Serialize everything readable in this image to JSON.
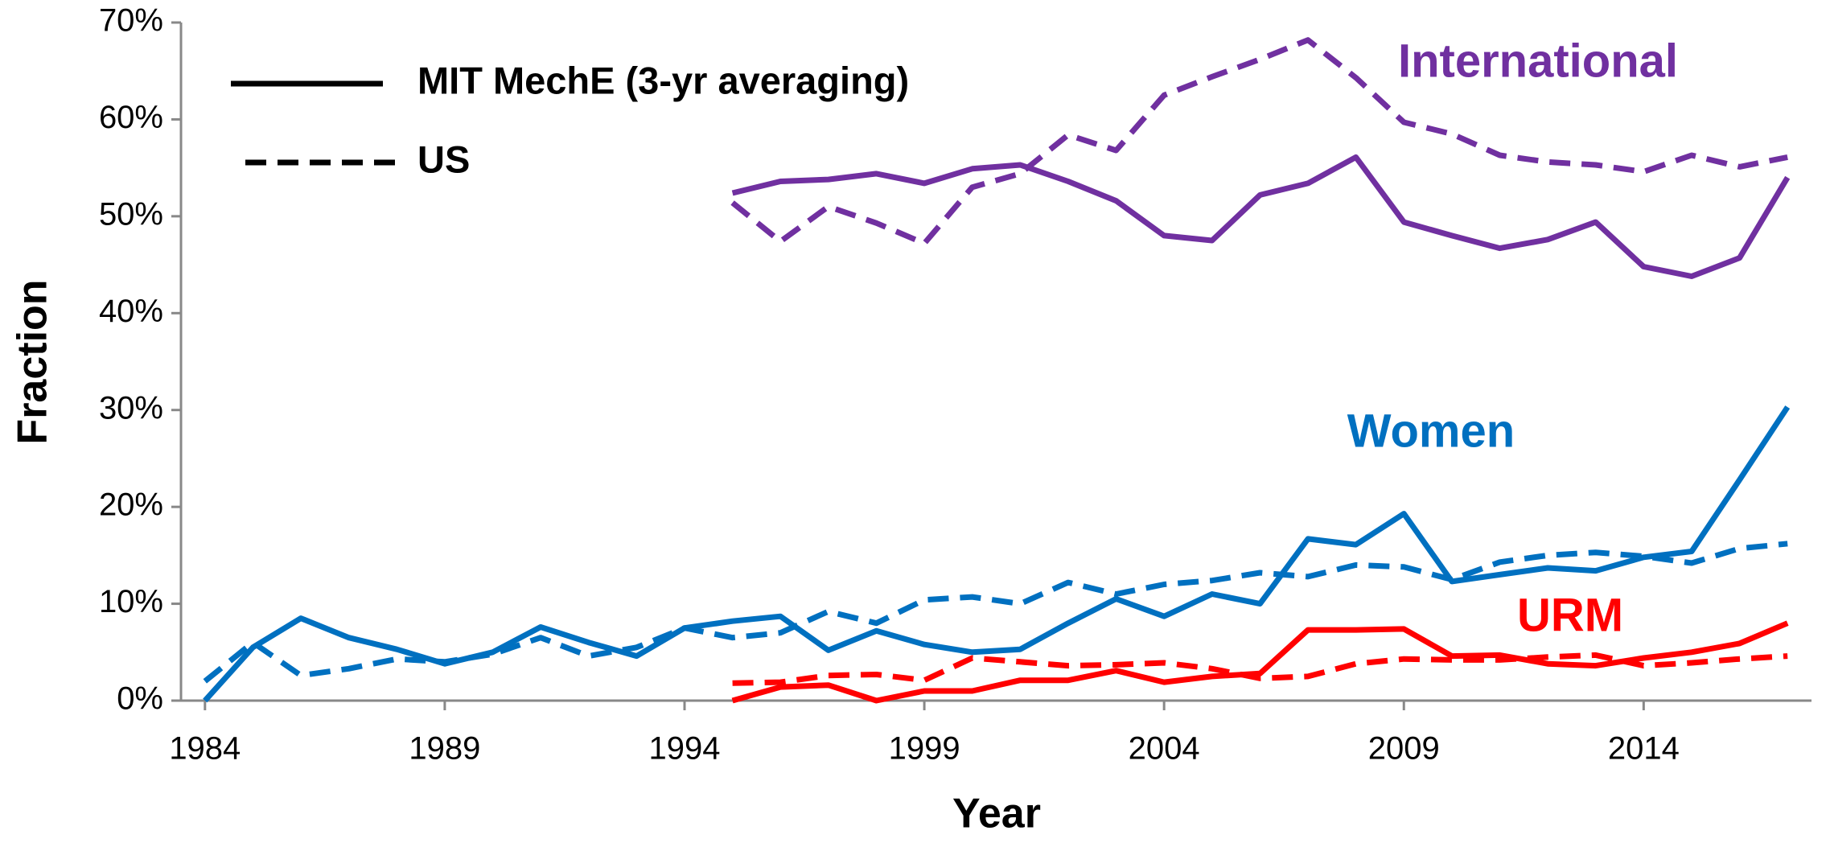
{
  "chart_data": {
    "type": "line",
    "x_label": "Year",
    "y_label": "Fraction",
    "x": [
      1984,
      1985,
      1986,
      1987,
      1988,
      1989,
      1990,
      1991,
      1992,
      1993,
      1994,
      1995,
      1996,
      1997,
      1998,
      1999,
      2000,
      2001,
      2002,
      2003,
      2004,
      2005,
      2006,
      2007,
      2008,
      2009,
      2010,
      2011,
      2012,
      2013,
      2014,
      2015,
      2016,
      2017
    ],
    "xlim": [
      1983.5,
      2017.5
    ],
    "xticks": [
      1984,
      1989,
      1994,
      1999,
      2004,
      2009,
      2014
    ],
    "ylim": [
      0,
      70
    ],
    "yticks": [
      {
        "value": 0,
        "label": "0%"
      },
      {
        "value": 10,
        "label": "10%"
      },
      {
        "value": 20,
        "label": "20%"
      },
      {
        "value": 30,
        "label": "30%"
      },
      {
        "value": 40,
        "label": "40%"
      },
      {
        "value": 50,
        "label": "50%"
      },
      {
        "value": 60,
        "label": "60%"
      },
      {
        "value": 70,
        "label": "70%"
      }
    ],
    "legend": [
      {
        "label": "MIT MechE (3-yr averaging)",
        "dashed": false
      },
      {
        "label": "US",
        "dashed": true
      }
    ],
    "series": [
      {
        "name": "International",
        "color": "#7030a0",
        "values": [
          null,
          null,
          null,
          null,
          null,
          null,
          null,
          null,
          null,
          null,
          null,
          52.4,
          53.6,
          53.8,
          54.4,
          53.4,
          54.9,
          55.3,
          53.6,
          51.6,
          48,
          47.5,
          52.2,
          53.4,
          56.1,
          49.4,
          48,
          46.7,
          47.6,
          49.4,
          44.8,
          43.8,
          45.7,
          54
        ],
        "us_values": [
          null,
          null,
          null,
          null,
          null,
          null,
          null,
          null,
          null,
          null,
          null,
          51.4,
          47.4,
          51,
          49.3,
          47.2,
          53,
          54.4,
          58.4,
          56.8,
          62.5,
          64.4,
          66.2,
          68.2,
          64.3,
          59.7,
          58.5,
          56.3,
          55.6,
          55.3,
          54.6,
          56.3,
          55.1,
          56.1
        ]
      },
      {
        "name": "Women",
        "color": "#0070c0",
        "values": [
          0,
          5.5,
          8.5,
          6.5,
          5.3,
          3.8,
          5,
          7.6,
          6,
          4.6,
          7.5,
          8.2,
          8.7,
          5.2,
          7.2,
          5.8,
          5,
          5.3,
          8,
          10.5,
          8.7,
          11,
          10,
          16.7,
          16.1,
          19.3,
          12.3,
          13,
          13.7,
          13.4,
          14.8,
          15.4,
          22.8,
          30.3
        ],
        "us_values": [
          2,
          6,
          2.6,
          3.3,
          4.3,
          4,
          4.8,
          6.5,
          4.6,
          5.5,
          7.5,
          6.5,
          7,
          9.2,
          8,
          10.4,
          10.7,
          10,
          12.2,
          11,
          12,
          12.4,
          13.2,
          12.8,
          14,
          13.8,
          12.5,
          14.3,
          15,
          15.3,
          14.9,
          14.2,
          15.7,
          16.2
        ]
      },
      {
        "name": "URM",
        "color": "#ff0000",
        "values": [
          null,
          null,
          null,
          null,
          null,
          null,
          null,
          null,
          null,
          null,
          null,
          0,
          1.4,
          1.6,
          0,
          1,
          1,
          2.1,
          2.1,
          3.1,
          1.9,
          2.5,
          2.8,
          7.3,
          7.3,
          7.4,
          4.6,
          4.7,
          3.8,
          3.6,
          4.4,
          5,
          5.9,
          8
        ],
        "us_values": [
          null,
          null,
          null,
          null,
          null,
          null,
          null,
          null,
          null,
          null,
          null,
          1.8,
          1.9,
          2.6,
          2.7,
          2.1,
          4.4,
          4,
          3.6,
          3.7,
          3.9,
          3.3,
          2.3,
          2.5,
          3.8,
          4.3,
          4.2,
          4.2,
          4.5,
          4.7,
          3.6,
          3.9,
          4.3,
          4.6
        ]
      }
    ]
  }
}
